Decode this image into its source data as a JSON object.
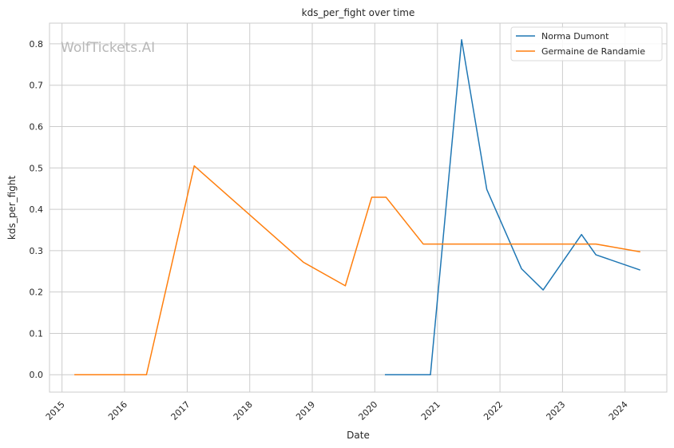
{
  "chart_data": {
    "type": "line",
    "title": "kds_per_fight over time",
    "xlabel": "Date",
    "ylabel": "kds_per_fight",
    "watermark": "WolfTickets.AI",
    "xlim": [
      "2014-10-20",
      "2024-09-01"
    ],
    "ylim": [
      -0.042,
      0.85
    ],
    "x_ticks": [
      "2015",
      "2016",
      "2017",
      "2018",
      "2019",
      "2020",
      "2021",
      "2022",
      "2023",
      "2024"
    ],
    "y_ticks": [
      "0.0",
      "0.1",
      "0.2",
      "0.3",
      "0.4",
      "0.5",
      "0.6",
      "0.7",
      "0.8"
    ],
    "grid": true,
    "legend_position": "top-right",
    "series": [
      {
        "name": "Norma Dumont",
        "color": "#1f77b4",
        "points": [
          {
            "x": "2020-02-29",
            "y": 0.0
          },
          {
            "x": "2020-11-21",
            "y": 0.0
          },
          {
            "x": "2021-05-22",
            "y": 0.81
          },
          {
            "x": "2021-10-16",
            "y": 0.448
          },
          {
            "x": "2022-05-07",
            "y": 0.256
          },
          {
            "x": "2022-09-10",
            "y": 0.205
          },
          {
            "x": "2023-04-22",
            "y": 0.339
          },
          {
            "x": "2023-07-15",
            "y": 0.29
          },
          {
            "x": "2024-03-30",
            "y": 0.253
          }
        ]
      },
      {
        "name": "Germaine de Randamie",
        "color": "#ff7f0e",
        "points": [
          {
            "x": "2015-03-14",
            "y": 0.0
          },
          {
            "x": "2016-05-08",
            "y": 0.0
          },
          {
            "x": "2017-02-11",
            "y": 0.505
          },
          {
            "x": "2018-11-10",
            "y": 0.272
          },
          {
            "x": "2019-07-13",
            "y": 0.215
          },
          {
            "x": "2019-12-14",
            "y": 0.429
          },
          {
            "x": "2020-03-07",
            "y": 0.429
          },
          {
            "x": "2020-10-10",
            "y": 0.316
          },
          {
            "x": "2023-07-15",
            "y": 0.316
          },
          {
            "x": "2024-03-30",
            "y": 0.297
          }
        ]
      }
    ]
  }
}
